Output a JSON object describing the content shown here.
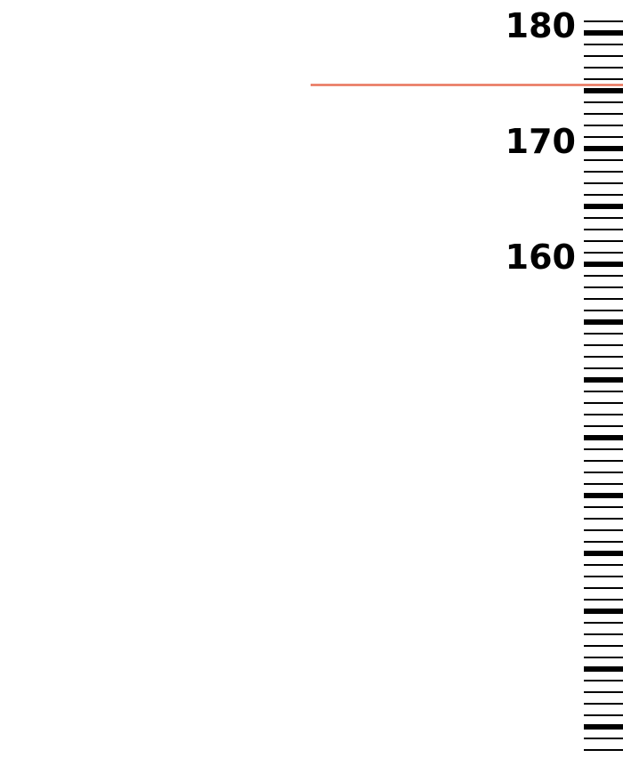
{
  "ruler": {
    "labels": [
      "180",
      "170",
      "160"
    ],
    "unit_ticks": [
      181,
      180,
      179,
      178,
      177,
      176,
      175,
      174,
      173,
      172,
      171,
      170,
      169,
      168,
      167,
      166,
      165,
      164,
      163,
      162,
      161,
      160,
      159,
      158,
      157,
      156,
      155,
      154,
      153,
      152,
      151,
      150,
      149,
      148,
      147,
      146,
      145,
      144,
      143,
      142,
      141,
      140,
      139,
      138,
      137,
      136,
      135,
      134,
      133,
      132,
      131,
      130,
      129,
      128,
      127,
      126,
      125,
      124,
      123,
      122,
      121,
      120,
      119,
      118,
      117
    ],
    "major_every": 5,
    "marker_value": 175.5,
    "colors": {
      "ticks": "#000000",
      "labels": "#000000",
      "marker": "#e8735a"
    }
  }
}
